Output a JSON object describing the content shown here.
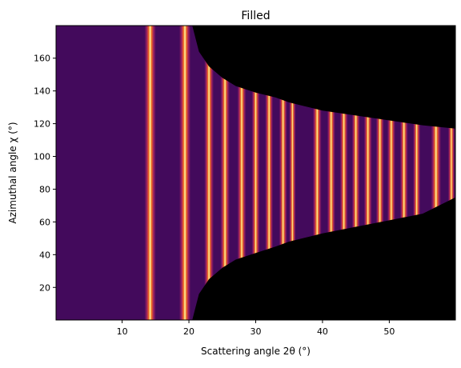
{
  "chart_data": {
    "type": "heatmap",
    "title": "Filled",
    "xlabel": "Scattering angle 2θ (°)",
    "ylabel": "Azimuthal angle χ (°)",
    "xlim": [
      0.1,
      59.9
    ],
    "ylim": [
      0.1,
      179.9
    ],
    "xticks": [
      10,
      20,
      30,
      40,
      50
    ],
    "yticks": [
      20,
      40,
      60,
      80,
      100,
      120,
      140,
      160
    ],
    "colormap": "inferno",
    "colors": {
      "background_fill": "#430a5c",
      "masked": "#000000",
      "ring_low": "#9a1f63",
      "ring_mid": "#f26a21",
      "ring_high": "#fcffa4"
    },
    "rings": [
      {
        "center": 14.2,
        "width": 1.7
      },
      {
        "center": 19.4,
        "width": 1.7
      },
      {
        "center": 23.0,
        "width": 1.4
      },
      {
        "center": 25.4,
        "width": 1.4
      },
      {
        "center": 27.9,
        "width": 1.3
      },
      {
        "center": 30.0,
        "width": 1.2
      },
      {
        "center": 32.0,
        "width": 1.2
      },
      {
        "center": 34.1,
        "width": 1.2
      },
      {
        "center": 35.5,
        "width": 1.0
      },
      {
        "center": 39.2,
        "width": 1.3
      },
      {
        "center": 41.3,
        "width": 1.2
      },
      {
        "center": 43.2,
        "width": 1.2
      },
      {
        "center": 45.0,
        "width": 1.2
      },
      {
        "center": 46.8,
        "width": 1.2
      },
      {
        "center": 48.6,
        "width": 1.2
      },
      {
        "center": 50.3,
        "width": 1.2
      },
      {
        "center": 52.2,
        "width": 1.2
      },
      {
        "center": 54.1,
        "width": 1.1
      },
      {
        "center": 57.0,
        "width": 1.5
      },
      {
        "center": 59.3,
        "width": 1.0
      }
    ],
    "mask_boundary_upper": {
      "x": [
        20.5,
        21.5,
        23,
        25,
        27,
        30,
        33,
        35,
        38,
        40,
        45,
        50,
        55,
        59.9
      ],
      "y": [
        179.9,
        164,
        155,
        148,
        143,
        139,
        136,
        133,
        130,
        128,
        125,
        122,
        119,
        117
      ]
    },
    "mask_boundary_lower": {
      "x": [
        20.5,
        21.5,
        23,
        25,
        27,
        30,
        33,
        35,
        38,
        40,
        45,
        50,
        55,
        59.9
      ],
      "y": [
        0.1,
        16,
        25,
        32,
        37,
        41,
        45,
        48,
        51,
        53,
        57,
        61,
        65,
        75
      ]
    }
  }
}
